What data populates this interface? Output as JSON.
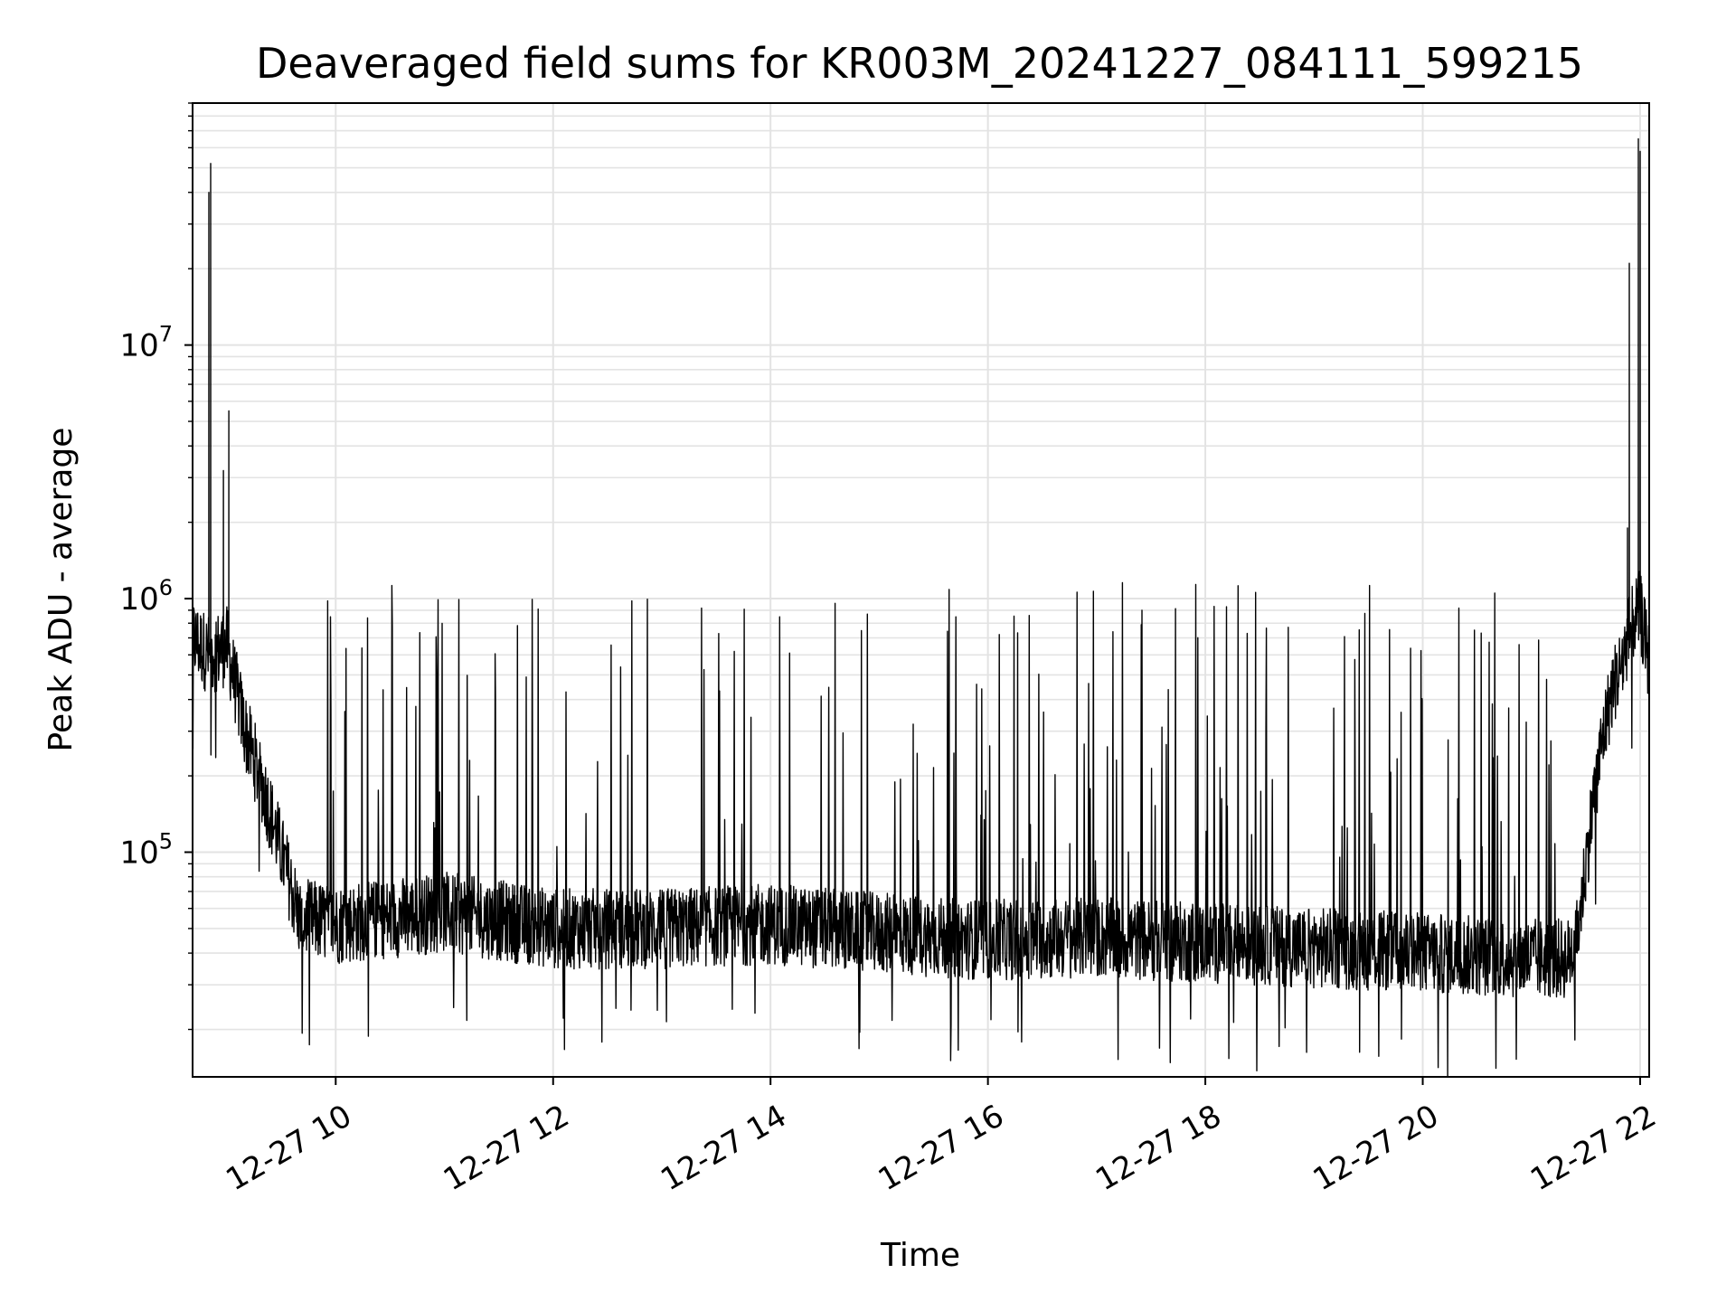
{
  "chart_data": {
    "type": "line",
    "title": "Deaveraged field sums for KR003M_20241227_084111_599215",
    "xlabel": "Time",
    "ylabel": "Peak ADU - average",
    "yscale": "log",
    "ylim": [
      13000,
      90000000
    ],
    "xlim": [
      "2024-12-27 08:41",
      "2024-12-27 22:05"
    ],
    "grid": true,
    "x_ticks": [
      {
        "x": "2024-12-27 10:00",
        "label": "12-27 10"
      },
      {
        "x": "2024-12-27 12:00",
        "label": "12-27 12"
      },
      {
        "x": "2024-12-27 14:00",
        "label": "12-27 14"
      },
      {
        "x": "2024-12-27 16:00",
        "label": "12-27 16"
      },
      {
        "x": "2024-12-27 18:00",
        "label": "12-27 18"
      },
      {
        "x": "2024-12-27 20:00",
        "label": "12-27 20"
      },
      {
        "x": "2024-12-27 22:00",
        "label": "12-27 22"
      }
    ],
    "y_ticks": [
      {
        "value": 100000,
        "base": "10",
        "exp": "5"
      },
      {
        "value": 1000000,
        "base": "10",
        "exp": "6"
      },
      {
        "value": 10000000,
        "base": "10",
        "exp": "7"
      }
    ],
    "series": [
      {
        "color": "#000000",
        "baseline": [
          [
            "2024-12-27 08:41",
            700000
          ],
          [
            "2024-12-27 08:50",
            600000
          ],
          [
            "2024-12-27 09:00",
            650000
          ],
          [
            "2024-12-27 09:10",
            300000
          ],
          [
            "2024-12-27 09:20",
            180000
          ],
          [
            "2024-12-27 09:30",
            100000
          ],
          [
            "2024-12-27 09:40",
            55000
          ],
          [
            "2024-12-27 10:00",
            52000
          ],
          [
            "2024-12-27 11:00",
            58000
          ],
          [
            "2024-12-27 12:00",
            50000
          ],
          [
            "2024-12-27 13:00",
            50000
          ],
          [
            "2024-12-27 14:00",
            52000
          ],
          [
            "2024-12-27 15:00",
            48000
          ],
          [
            "2024-12-27 16:00",
            45000
          ],
          [
            "2024-12-27 17:00",
            46000
          ],
          [
            "2024-12-27 18:00",
            44000
          ],
          [
            "2024-12-27 19:00",
            42000
          ],
          [
            "2024-12-27 20:00",
            40000
          ],
          [
            "2024-12-27 21:00",
            38000
          ],
          [
            "2024-12-27 21:20",
            38000
          ],
          [
            "2024-12-27 21:25",
            45000
          ],
          [
            "2024-12-27 21:30",
            90000
          ],
          [
            "2024-12-27 21:35",
            180000
          ],
          [
            "2024-12-27 21:40",
            300000
          ],
          [
            "2024-12-27 21:45",
            450000
          ],
          [
            "2024-12-27 21:50",
            550000
          ],
          [
            "2024-12-27 21:55",
            800000
          ],
          [
            "2024-12-27 22:00",
            900000
          ],
          [
            "2024-12-27 22:05",
            550000
          ]
        ],
        "spikes": [
          [
            "2024-12-27 08:50",
            40000000
          ],
          [
            "2024-12-27 08:51",
            52000000
          ],
          [
            "2024-12-27 08:58",
            3200000
          ],
          [
            "2024-12-27 09:01",
            5500000
          ],
          [
            "2024-12-27 21:54",
            21000000
          ],
          [
            "2024-12-27 21:59",
            65000000
          ],
          [
            "2024-12-27 22:00",
            58000000
          ],
          [
            "2024-12-27 21:53",
            1900000
          ]
        ]
      }
    ]
  }
}
